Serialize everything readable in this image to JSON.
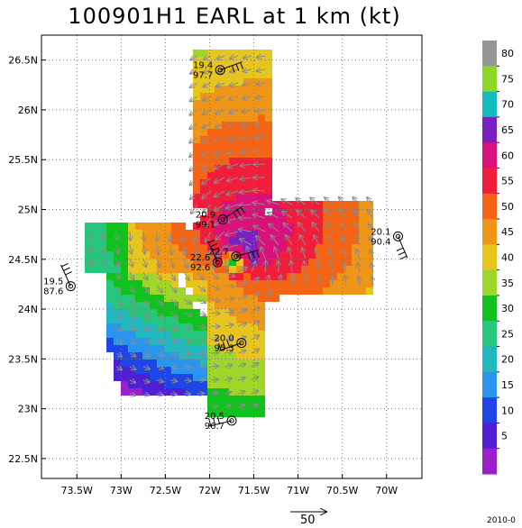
{
  "chart_data": {
    "type": "heatmap",
    "title": "100901H1 EARL at 1 km (kt)",
    "x_ticks": [
      "73.5W",
      "73W",
      "72.5W",
      "72W",
      "71.5W",
      "71W",
      "70.5W",
      "70W"
    ],
    "x_tick_values": [
      -73.5,
      -73.0,
      -72.5,
      -72.0,
      -71.5,
      -71.0,
      -70.5,
      -70.0
    ],
    "y_ticks": [
      "26.5N",
      "26N",
      "25.5N",
      "25N",
      "24.5N",
      "24N",
      "23.5N",
      "23N",
      "22.5N"
    ],
    "y_tick_values": [
      26.5,
      26.0,
      25.5,
      25.0,
      24.5,
      24.0,
      23.5,
      23.0,
      22.5
    ],
    "xlim": [
      -73.9,
      -69.6
    ],
    "ylim": [
      22.3,
      26.75
    ],
    "grid": true,
    "colorbar": {
      "labels": [
        "80",
        "75",
        "70",
        "65",
        "60",
        "55",
        "50",
        "45",
        "40",
        "35",
        "30",
        "25",
        "20",
        "15",
        "10",
        "5"
      ],
      "levels": [
        80,
        75,
        70,
        65,
        60,
        55,
        50,
        45,
        40,
        35,
        30,
        25,
        20,
        15,
        10,
        5
      ],
      "colors": [
        "#969696",
        "#8fd62a",
        "#12bcbc",
        "#7a1fc0",
        "#d8127a",
        "#f01e3a",
        "#f46414",
        "#ef9518",
        "#e6c51f",
        "#9ed62a",
        "#11c21e",
        "#27c67e",
        "#23b7c0",
        "#2a95ee",
        "#1f45e6",
        "#4f1fd3",
        "#9a1fca"
      ]
    },
    "center": {
      "lon": -71.7,
      "lat": 24.5
    },
    "stations": [
      {
        "lon": -71.88,
        "lat": 26.4,
        "labels": [
          "19.4",
          "97.7"
        ]
      },
      {
        "lon": -71.85,
        "lat": 24.9,
        "labels": [
          "20.9",
          "99.1"
        ]
      },
      {
        "lon": -69.87,
        "lat": 24.73,
        "labels": [
          "20.1",
          "90.4"
        ]
      },
      {
        "lon": -71.7,
        "lat": 24.53,
        "labels": [
          "22.7"
        ]
      },
      {
        "lon": -71.91,
        "lat": 24.47,
        "labels": [
          "22.6",
          "92.6"
        ]
      },
      {
        "lon": -73.57,
        "lat": 24.23,
        "labels": [
          "19.5",
          "87.6"
        ]
      },
      {
        "lon": -71.64,
        "lat": 23.66,
        "labels": [
          "20.0",
          "95.3"
        ]
      },
      {
        "lon": -71.75,
        "lat": 22.88,
        "labels": [
          "20.5",
          "96.7"
        ]
      }
    ],
    "scale_label": "50",
    "footer": "2010-0"
  }
}
